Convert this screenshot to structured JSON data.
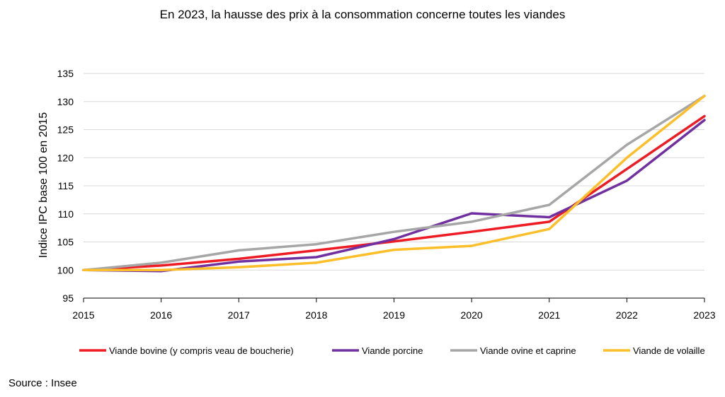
{
  "chart_data": {
    "type": "line",
    "title": "En 2023, la hausse des prix à la consommation concerne toutes les viandes",
    "xlabel": "",
    "ylabel": "Indice IPC base 100 en 2015",
    "categories": [
      "2015",
      "2016",
      "2017",
      "2018",
      "2019",
      "2020",
      "2021",
      "2022",
      "2023"
    ],
    "ylim": [
      95,
      135
    ],
    "yticks": [
      95,
      100,
      105,
      110,
      115,
      120,
      125,
      130,
      135
    ],
    "grid": true,
    "legend_position": "bottom",
    "series": [
      {
        "name": "Viande bovine (y compris veau de boucherie)",
        "color": "#ed1c24",
        "values": [
          100,
          100.8,
          102.0,
          103.5,
          105.1,
          106.8,
          108.6,
          118.0,
          127.4
        ]
      },
      {
        "name": "Viande porcine",
        "color": "#7030a0",
        "values": [
          100,
          99.8,
          101.5,
          102.3,
          105.5,
          110.1,
          109.4,
          115.9,
          126.7
        ]
      },
      {
        "name": "Viande ovine et caprine",
        "color": "#a6a6a6",
        "values": [
          100,
          101.3,
          103.5,
          104.6,
          106.8,
          108.6,
          111.6,
          122.3,
          131.0
        ]
      },
      {
        "name": "Viande de volaille",
        "color": "#fcbf2a",
        "values": [
          100,
          100.0,
          100.5,
          101.3,
          103.6,
          104.3,
          107.3,
          120.0,
          131.0
        ]
      }
    ]
  },
  "source": "Source : Insee",
  "colors": {
    "grid": "#d9d9d9",
    "axis": "#000000"
  }
}
